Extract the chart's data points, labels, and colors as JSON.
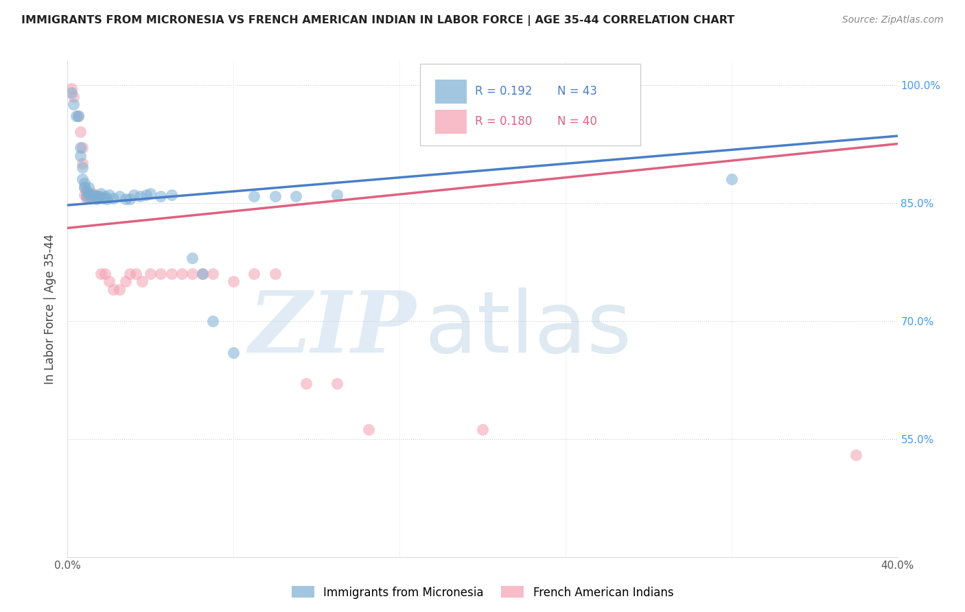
{
  "title": "IMMIGRANTS FROM MICRONESIA VS FRENCH AMERICAN INDIAN IN LABOR FORCE | AGE 35-44 CORRELATION CHART",
  "source_text": "Source: ZipAtlas.com",
  "ylabel": "In Labor Force | Age 35-44",
  "xlim": [
    0.0,
    0.4
  ],
  "ylim": [
    0.4,
    1.03
  ],
  "yticks": [
    0.55,
    0.7,
    0.85,
    1.0
  ],
  "right_yticklabels": [
    "55.0%",
    "70.0%",
    "85.0%",
    "100.0%"
  ],
  "watermark_zip": "ZIP",
  "watermark_atlas": "atlas",
  "legend_blue_r": "R = 0.192",
  "legend_blue_n": "N = 43",
  "legend_pink_r": "R = 0.180",
  "legend_pink_n": "N = 40",
  "blue_color": "#7BAFD4",
  "pink_color": "#F4A0B0",
  "blue_line_color": "#4A7EC7",
  "pink_line_color": "#E06080",
  "blue_scatter_x": [
    0.002,
    0.003,
    0.004,
    0.005,
    0.006,
    0.006,
    0.007,
    0.007,
    0.008,
    0.008,
    0.009,
    0.009,
    0.01,
    0.01,
    0.011,
    0.012,
    0.013,
    0.014,
    0.015,
    0.016,
    0.017,
    0.018,
    0.019,
    0.02,
    0.022,
    0.025,
    0.028,
    0.03,
    0.032,
    0.035,
    0.038,
    0.04,
    0.045,
    0.05,
    0.06,
    0.065,
    0.07,
    0.08,
    0.09,
    0.1,
    0.11,
    0.13,
    0.32
  ],
  "blue_scatter_y": [
    0.99,
    0.975,
    0.96,
    0.96,
    0.92,
    0.91,
    0.895,
    0.88,
    0.875,
    0.87,
    0.865,
    0.858,
    0.87,
    0.862,
    0.858,
    0.86,
    0.858,
    0.855,
    0.858,
    0.862,
    0.856,
    0.858,
    0.855,
    0.86,
    0.856,
    0.858,
    0.855,
    0.855,
    0.86,
    0.858,
    0.86,
    0.862,
    0.858,
    0.86,
    0.78,
    0.76,
    0.7,
    0.66,
    0.858,
    0.858,
    0.858,
    0.86,
    0.88
  ],
  "pink_scatter_x": [
    0.002,
    0.003,
    0.005,
    0.006,
    0.007,
    0.007,
    0.008,
    0.008,
    0.009,
    0.009,
    0.01,
    0.011,
    0.012,
    0.013,
    0.014,
    0.015,
    0.016,
    0.018,
    0.02,
    0.022,
    0.025,
    0.028,
    0.03,
    0.033,
    0.036,
    0.04,
    0.045,
    0.05,
    0.055,
    0.06,
    0.065,
    0.07,
    0.08,
    0.09,
    0.1,
    0.115,
    0.13,
    0.145,
    0.2,
    0.38
  ],
  "pink_scatter_y": [
    0.995,
    0.985,
    0.96,
    0.94,
    0.92,
    0.9,
    0.87,
    0.86,
    0.86,
    0.856,
    0.858,
    0.858,
    0.862,
    0.86,
    0.858,
    0.858,
    0.76,
    0.76,
    0.75,
    0.74,
    0.74,
    0.75,
    0.76,
    0.76,
    0.75,
    0.76,
    0.76,
    0.76,
    0.76,
    0.76,
    0.76,
    0.76,
    0.75,
    0.76,
    0.76,
    0.62,
    0.62,
    0.562,
    0.562,
    0.53
  ]
}
